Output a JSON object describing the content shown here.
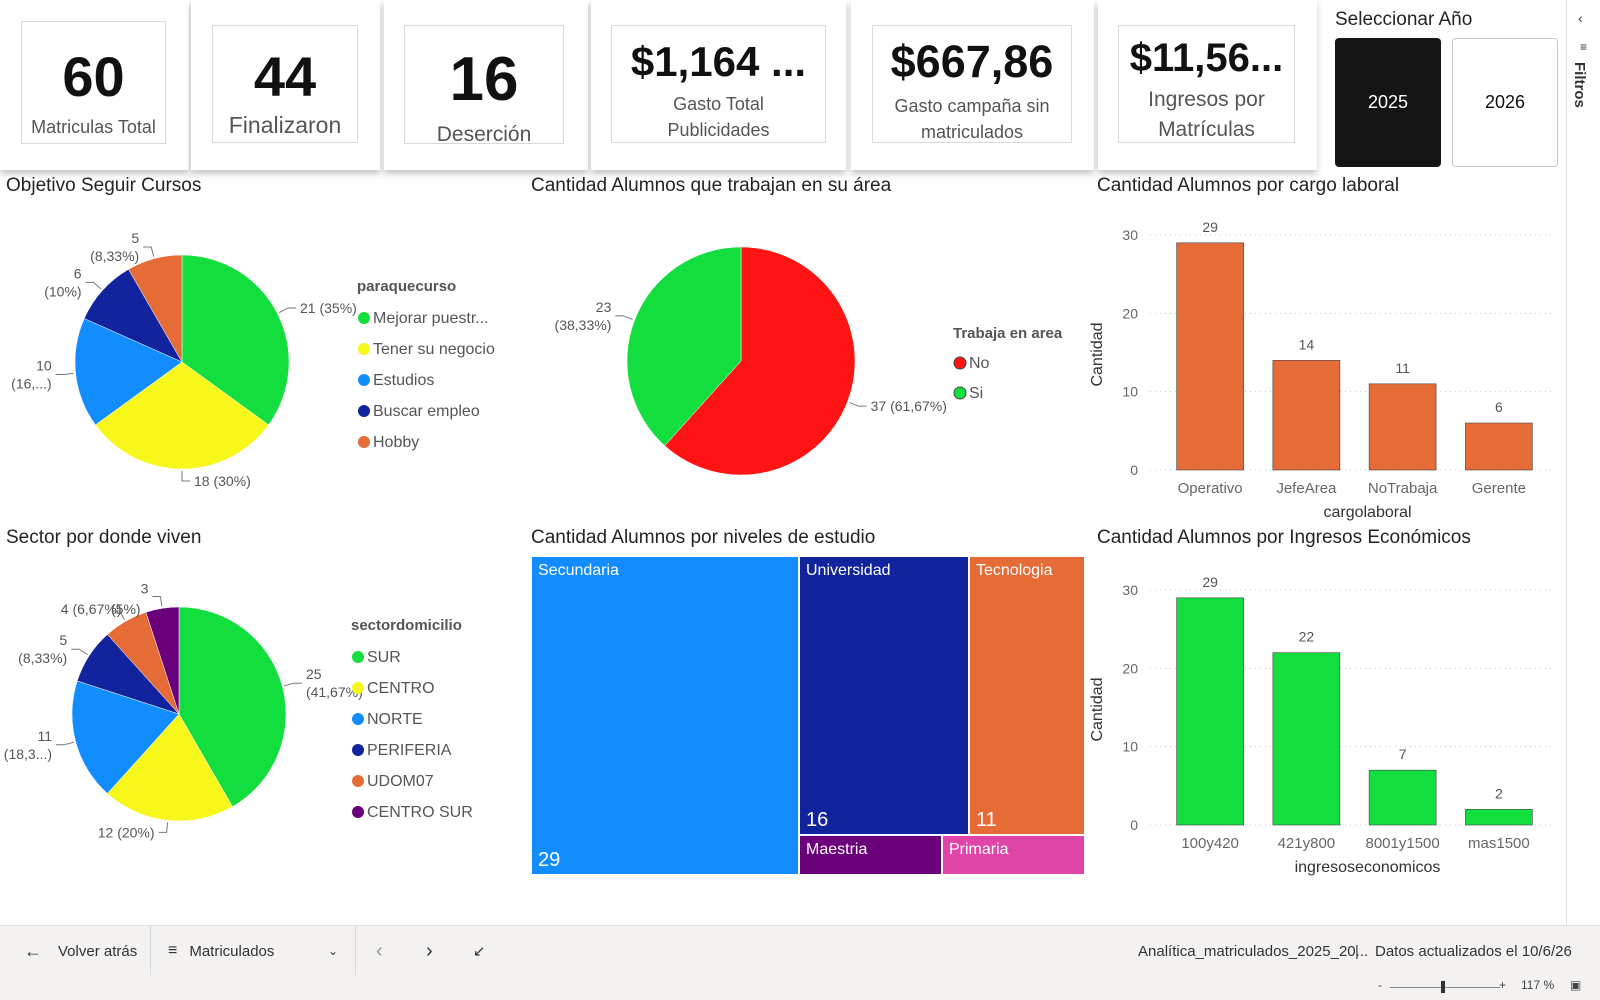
{
  "kpis": [
    {
      "value": "60",
      "label": "Matriculas Total"
    },
    {
      "value": "44",
      "label": "Finalizaron"
    },
    {
      "value": "16",
      "label": "Deserción"
    },
    {
      "value": "$1,164 ...",
      "label_line1": "Gasto Total",
      "label_line2": "Publicidades"
    },
    {
      "value": "$667,86",
      "label_line1": "Gasto campaña sin",
      "label_line2": "matriculados"
    },
    {
      "value": "$11,56...",
      "label_line1": "Ingresos por",
      "label_line2": "Matrículas"
    }
  ],
  "year_selector": {
    "title": "Seleccionar Año",
    "options": [
      "2025",
      "2026"
    ],
    "selected": "2025"
  },
  "filters_label": "Filtros",
  "footer": {
    "back_label": "Volver atrás",
    "page_label": "Matriculados",
    "file_name": "Analítica_matriculados_2025_20...",
    "updated": "Datos actualizados el 10/6/26",
    "zoom": "117 %",
    "zoom_minus": "-",
    "zoom_plus": "+"
  },
  "colors": {
    "green": "#12DE3E",
    "yellow": "#F7F71B",
    "blue": "#118DFF",
    "navy": "#12239E",
    "orange": "#E66C37",
    "purple": "#6B007B",
    "pink": "#E044A7",
    "red": "#FF1313"
  },
  "chart_data": [
    {
      "type": "pie",
      "title": "Objetivo Seguir Cursos",
      "legend_title": "paraquecurso",
      "legend_position": "right",
      "categories": [
        "Mejorar puestr...",
        "Tener su negocio",
        "Estudios",
        "Buscar empleo",
        "Hobby"
      ],
      "values": [
        21,
        18,
        10,
        6,
        5
      ],
      "data_labels": [
        "21 (35%)",
        "18 (30%)",
        "10 (16,...)",
        "6 (10%)",
        "5 (8,33%)"
      ],
      "colors": [
        "#12DE3E",
        "#F7F71B",
        "#118DFF",
        "#12239E",
        "#E66C37"
      ]
    },
    {
      "type": "pie",
      "title": "Cantidad Alumnos que trabajan en su área",
      "legend_title": "Trabaja en area",
      "legend_position": "right",
      "categories": [
        "No",
        "Si"
      ],
      "values": [
        37,
        23
      ],
      "data_labels": [
        "37 (61,67%)",
        "23 (38,33%)"
      ],
      "colors": [
        "#FF1313",
        "#12DE3E"
      ]
    },
    {
      "type": "bar",
      "title": "Cantidad Alumnos por cargo laboral",
      "categories": [
        "Operativo",
        "JefeArea",
        "NoTrabaja",
        "Gerente"
      ],
      "values": [
        29,
        14,
        11,
        6
      ],
      "xlabel": "cargolaboral",
      "ylabel": "Cantidad",
      "ylim": [
        0,
        30
      ],
      "yticks": [
        0,
        10,
        20,
        30
      ],
      "grid": true,
      "color": "#E66C37"
    },
    {
      "type": "pie",
      "title": "Sector por donde viven",
      "legend_title": "sectordomicilio",
      "legend_position": "right",
      "categories": [
        "SUR",
        "CENTRO",
        "NORTE",
        "PERIFERIA",
        "UDOM07",
        "CENTRO SUR"
      ],
      "values": [
        25,
        12,
        11,
        5,
        4,
        3
      ],
      "data_labels": [
        "25 (41,67%)",
        "12 (20%)",
        "11 (18,3...)",
        "5 (8,33%)",
        "4 (6,67%)",
        "3 (5%)"
      ],
      "colors": [
        "#12DE3E",
        "#F7F71B",
        "#118DFF",
        "#12239E",
        "#E66C37",
        "#6B007B"
      ]
    },
    {
      "type": "treemap",
      "title": "Cantidad Alumnos por niveles de estudio",
      "categories": [
        "Secundaria",
        "Universidad",
        "Tecnologia",
        "Maestria",
        "Primaria"
      ],
      "values": [
        29,
        16,
        11,
        null,
        null
      ],
      "value_labels": [
        "29",
        "16",
        "11",
        "",
        ""
      ],
      "colors": [
        "#118DFF",
        "#12239E",
        "#E66C37",
        "#6B007B",
        "#E044A7"
      ]
    },
    {
      "type": "bar",
      "title": "Cantidad Alumnos por Ingresos Económicos",
      "categories": [
        "100y420",
        "421y800",
        "8001y1500",
        "mas1500"
      ],
      "values": [
        29,
        22,
        7,
        2
      ],
      "xlabel": "ingresoseconomicos",
      "ylabel": "Cantidad",
      "ylim": [
        0,
        30
      ],
      "yticks": [
        0,
        10,
        20,
        30
      ],
      "grid": true,
      "color": "#12DE3E"
    }
  ]
}
